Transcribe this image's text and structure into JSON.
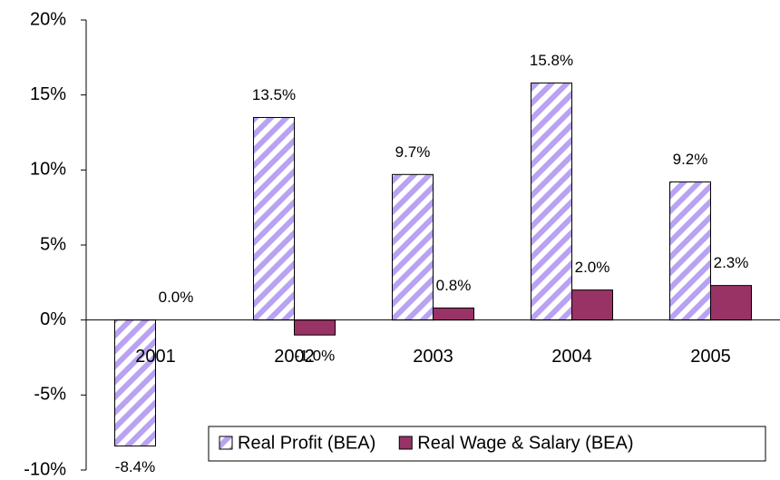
{
  "chart_data": {
    "type": "bar",
    "categories": [
      "2001",
      "2002",
      "2003",
      "2004",
      "2005"
    ],
    "series": [
      {
        "name": "Real Profit (BEA)",
        "color": "#b9a2f2",
        "hatch": true,
        "values": [
          -8.4,
          13.5,
          9.7,
          15.8,
          9.2
        ],
        "value_labels": [
          "-8.4%",
          "13.5%",
          "9.7%",
          "15.8%",
          "9.2%"
        ]
      },
      {
        "name": "Real Wage & Salary (BEA)",
        "color": "#993366",
        "hatch": false,
        "values": [
          0.0,
          -1.0,
          0.8,
          2.0,
          2.3
        ],
        "value_labels": [
          "0.0%",
          "-1.0%",
          "0.8%",
          "2.0%",
          "2.3%"
        ]
      }
    ],
    "ylim": [
      -10,
      20
    ],
    "yticks": [
      {
        "value": -10,
        "label": "-10%"
      },
      {
        "value": -5,
        "label": "-5%"
      },
      {
        "value": 0,
        "label": "0%"
      },
      {
        "value": 5,
        "label": "5%"
      },
      {
        "value": 10,
        "label": "10%"
      },
      {
        "value": 15,
        "label": "15%"
      },
      {
        "value": 20,
        "label": "20%"
      }
    ],
    "grid": false,
    "legend": "bottom-right"
  }
}
